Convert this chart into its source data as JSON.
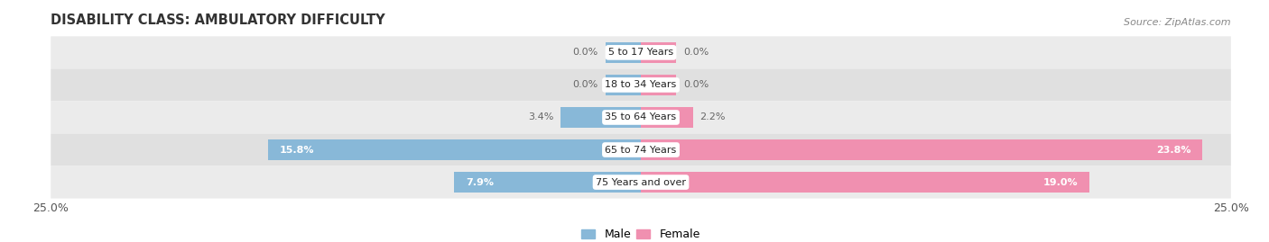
{
  "title": "DISABILITY CLASS: AMBULATORY DIFFICULTY",
  "source": "Source: ZipAtlas.com",
  "categories": [
    "5 to 17 Years",
    "18 to 34 Years",
    "35 to 64 Years",
    "65 to 74 Years",
    "75 Years and over"
  ],
  "male_values": [
    0.0,
    0.0,
    3.4,
    15.8,
    7.9
  ],
  "female_values": [
    0.0,
    0.0,
    2.2,
    23.8,
    19.0
  ],
  "max_val": 25.0,
  "male_color": "#88b8d8",
  "female_color": "#f090b0",
  "row_bg_colors": [
    "#ebebeb",
    "#e0e0e0",
    "#ebebeb",
    "#e0e0e0",
    "#ebebeb"
  ],
  "label_color_inside": "#ffffff",
  "label_color_outside": "#666666",
  "title_fontsize": 10.5,
  "source_fontsize": 8,
  "tick_fontsize": 9,
  "bar_label_fontsize": 8,
  "inside_threshold": 4.0,
  "min_bar_width": 1.5
}
